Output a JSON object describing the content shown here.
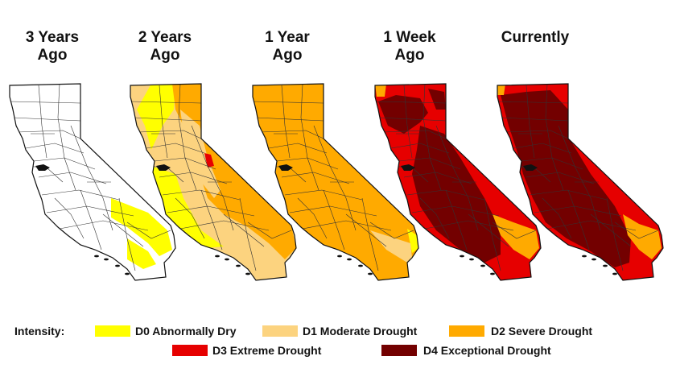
{
  "panels": [
    {
      "title": "3 Years\nAgo",
      "scenario": "three_years"
    },
    {
      "title": "2 Years\nAgo",
      "scenario": "two_years"
    },
    {
      "title": "1 Year\nAgo",
      "scenario": "one_year"
    },
    {
      "title": "1 Week\nAgo",
      "scenario": "one_week"
    },
    {
      "title": "Currently",
      "scenario": "current"
    }
  ],
  "legend": {
    "label": "Intensity:",
    "items": [
      {
        "text": "D0 Abnormally Dry",
        "color": "#ffff00"
      },
      {
        "text": "D1 Moderate Drought",
        "color": "#fcd37f"
      },
      {
        "text": "D2 Severe Drought",
        "color": "#ffaa00"
      },
      {
        "text": "D3 Extreme Drought",
        "color": "#e60000"
      },
      {
        "text": "D4 Exceptional Drought",
        "color": "#730000"
      }
    ]
  },
  "colors": {
    "none": "#ffffff",
    "outline": "#111111",
    "county_lines": "#333333"
  }
}
